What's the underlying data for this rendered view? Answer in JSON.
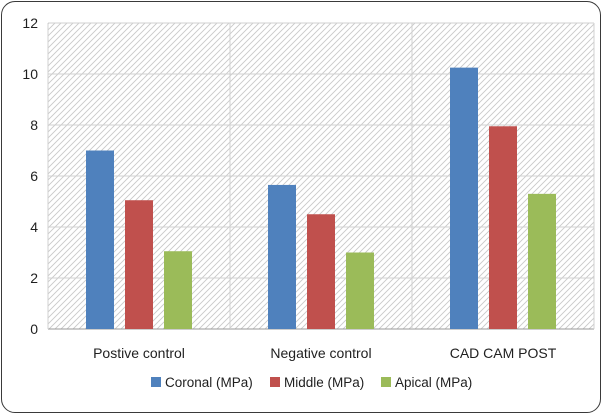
{
  "chart_data": {
    "type": "bar",
    "categories": [
      "Postive control",
      "Negative control",
      "CAD CAM POST"
    ],
    "series": [
      {
        "name": "Coronal (MPa)",
        "color": "#4f81bd",
        "values": [
          7.0,
          5.65,
          10.25
        ]
      },
      {
        "name": "Middle (MPa)",
        "color": "#c0504d",
        "values": [
          5.05,
          4.5,
          7.95
        ]
      },
      {
        "name": "Apical (MPa)",
        "color": "#9bbb59",
        "values": [
          3.05,
          3.0,
          5.3
        ]
      }
    ],
    "ylim": [
      0,
      12
    ],
    "yticks": [
      "0",
      "2",
      "4",
      "6",
      "8",
      "10",
      "12"
    ],
    "grid": true,
    "plot_background": "hatched",
    "legend_position": "bottom"
  }
}
